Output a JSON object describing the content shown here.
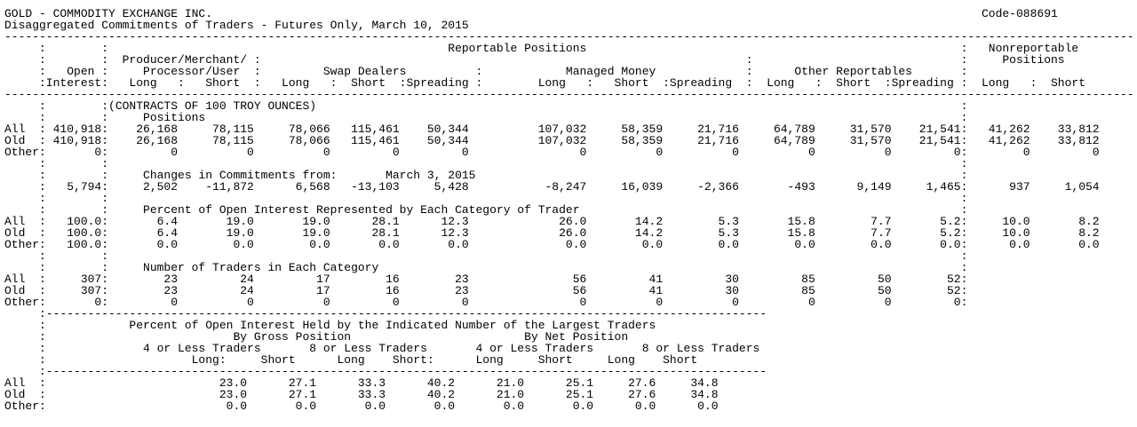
{
  "meta": {
    "title": "GOLD - COMMODITY EXCHANGE INC.",
    "code": "Code-088691",
    "subtitle": "Disaggregated Commitments of Traders - Futures Only, March 10, 2015"
  },
  "header": {
    "reportable": "Reportable Positions",
    "nonreportable_1": "Nonreportable",
    "nonreportable_2": "Positions",
    "open_1": "Open",
    "open_2": "Interest",
    "producer_1": "Producer/Merchant/",
    "producer_2": "Processor/User",
    "swap_dealers": "Swap Dealers",
    "managed_money": "Managed Money",
    "other_reportables": "Other Reportables",
    "cols": {
      "long": "Long",
      "short": "Short",
      "spreading": "Spreading"
    }
  },
  "unit_note": "(CONTRACTS OF 100 TROY OUNCES)",
  "positions": {
    "title": "Positions",
    "rows": [
      {
        "label": "All",
        "open_interest": "410,918",
        "values": [
          "26,168",
          "78,115",
          "78,066",
          "115,461",
          "50,344",
          "107,032",
          "58,359",
          "21,716",
          "64,789",
          "31,570",
          "21,541",
          "41,262",
          "33,812"
        ]
      },
      {
        "label": "Old",
        "open_interest": "410,918",
        "values": [
          "26,168",
          "78,115",
          "78,066",
          "115,461",
          "50,344",
          "107,032",
          "58,359",
          "21,716",
          "64,789",
          "31,570",
          "21,541",
          "41,262",
          "33,812"
        ]
      },
      {
        "label": "Other",
        "open_interest": "0",
        "values": [
          "0",
          "0",
          "0",
          "0",
          "0",
          "0",
          "0",
          "0",
          "0",
          "0",
          "0",
          "0",
          "0"
        ]
      }
    ]
  },
  "changes": {
    "title": "Changes in Commitments from:",
    "date": "March 3, 2015",
    "row": {
      "label": "",
      "open_interest": "5,794",
      "values": [
        "2,502",
        "-11,872",
        "6,568",
        "-13,103",
        "5,428",
        "-8,247",
        "16,039",
        "-2,366",
        "-493",
        "9,149",
        "1,465",
        "937",
        "1,054"
      ]
    }
  },
  "percent_oi": {
    "title": "Percent of Open Interest Represented by Each Category of Trader",
    "rows": [
      {
        "label": "All",
        "open_interest": "100.0",
        "values": [
          "6.4",
          "19.0",
          "19.0",
          "28.1",
          "12.3",
          "26.0",
          "14.2",
          "5.3",
          "15.8",
          "7.7",
          "5.2",
          "10.0",
          "8.2"
        ]
      },
      {
        "label": "Old",
        "open_interest": "100.0",
        "values": [
          "6.4",
          "19.0",
          "19.0",
          "28.1",
          "12.3",
          "26.0",
          "14.2",
          "5.3",
          "15.8",
          "7.7",
          "5.2",
          "10.0",
          "8.2"
        ]
      },
      {
        "label": "Other",
        "open_interest": "100.0",
        "values": [
          "0.0",
          "0.0",
          "0.0",
          "0.0",
          "0.0",
          "0.0",
          "0.0",
          "0.0",
          "0.0",
          "0.0",
          "0.0",
          "0.0",
          "0.0"
        ]
      }
    ]
  },
  "trader_counts": {
    "title": "Number of Traders in Each Category",
    "rows": [
      {
        "label": "All",
        "open_interest": "307",
        "values": [
          "23",
          "24",
          "17",
          "16",
          "23",
          "56",
          "41",
          "30",
          "85",
          "50",
          "52",
          "",
          ""
        ]
      },
      {
        "label": "Old",
        "open_interest": "307",
        "values": [
          "23",
          "24",
          "17",
          "16",
          "23",
          "56",
          "41",
          "30",
          "85",
          "50",
          "52",
          "",
          ""
        ]
      },
      {
        "label": "Other",
        "open_interest": "0",
        "values": [
          "0",
          "0",
          "0",
          "0",
          "0",
          "0",
          "0",
          "0",
          "0",
          "0",
          "0",
          "",
          ""
        ]
      }
    ]
  },
  "concentration": {
    "title": "Percent of Open Interest Held by the Indicated Number of the Largest Traders",
    "by_gross": "By Gross Position",
    "by_net": "By Net Position",
    "groups": [
      "4 or Less Traders",
      "8 or Less Traders",
      "4 or Less Traders",
      "8 or Less Traders"
    ],
    "col_headers": [
      "Long:",
      "Short",
      "Long",
      "Short:",
      "Long",
      "Short",
      "Long",
      "Short"
    ],
    "rows": [
      {
        "label": "All",
        "values": [
          "23.0",
          "27.1",
          "33.3",
          "40.2",
          "21.0",
          "25.1",
          "27.6",
          "34.8"
        ]
      },
      {
        "label": "Old",
        "values": [
          "23.0",
          "27.1",
          "33.3",
          "40.2",
          "21.0",
          "25.1",
          "27.6",
          "34.8"
        ]
      },
      {
        "label": "Other",
        "values": [
          "0.0",
          "0.0",
          "0.0",
          "0.0",
          "0.0",
          "0.0",
          "0.0",
          "0.0"
        ]
      }
    ]
  }
}
